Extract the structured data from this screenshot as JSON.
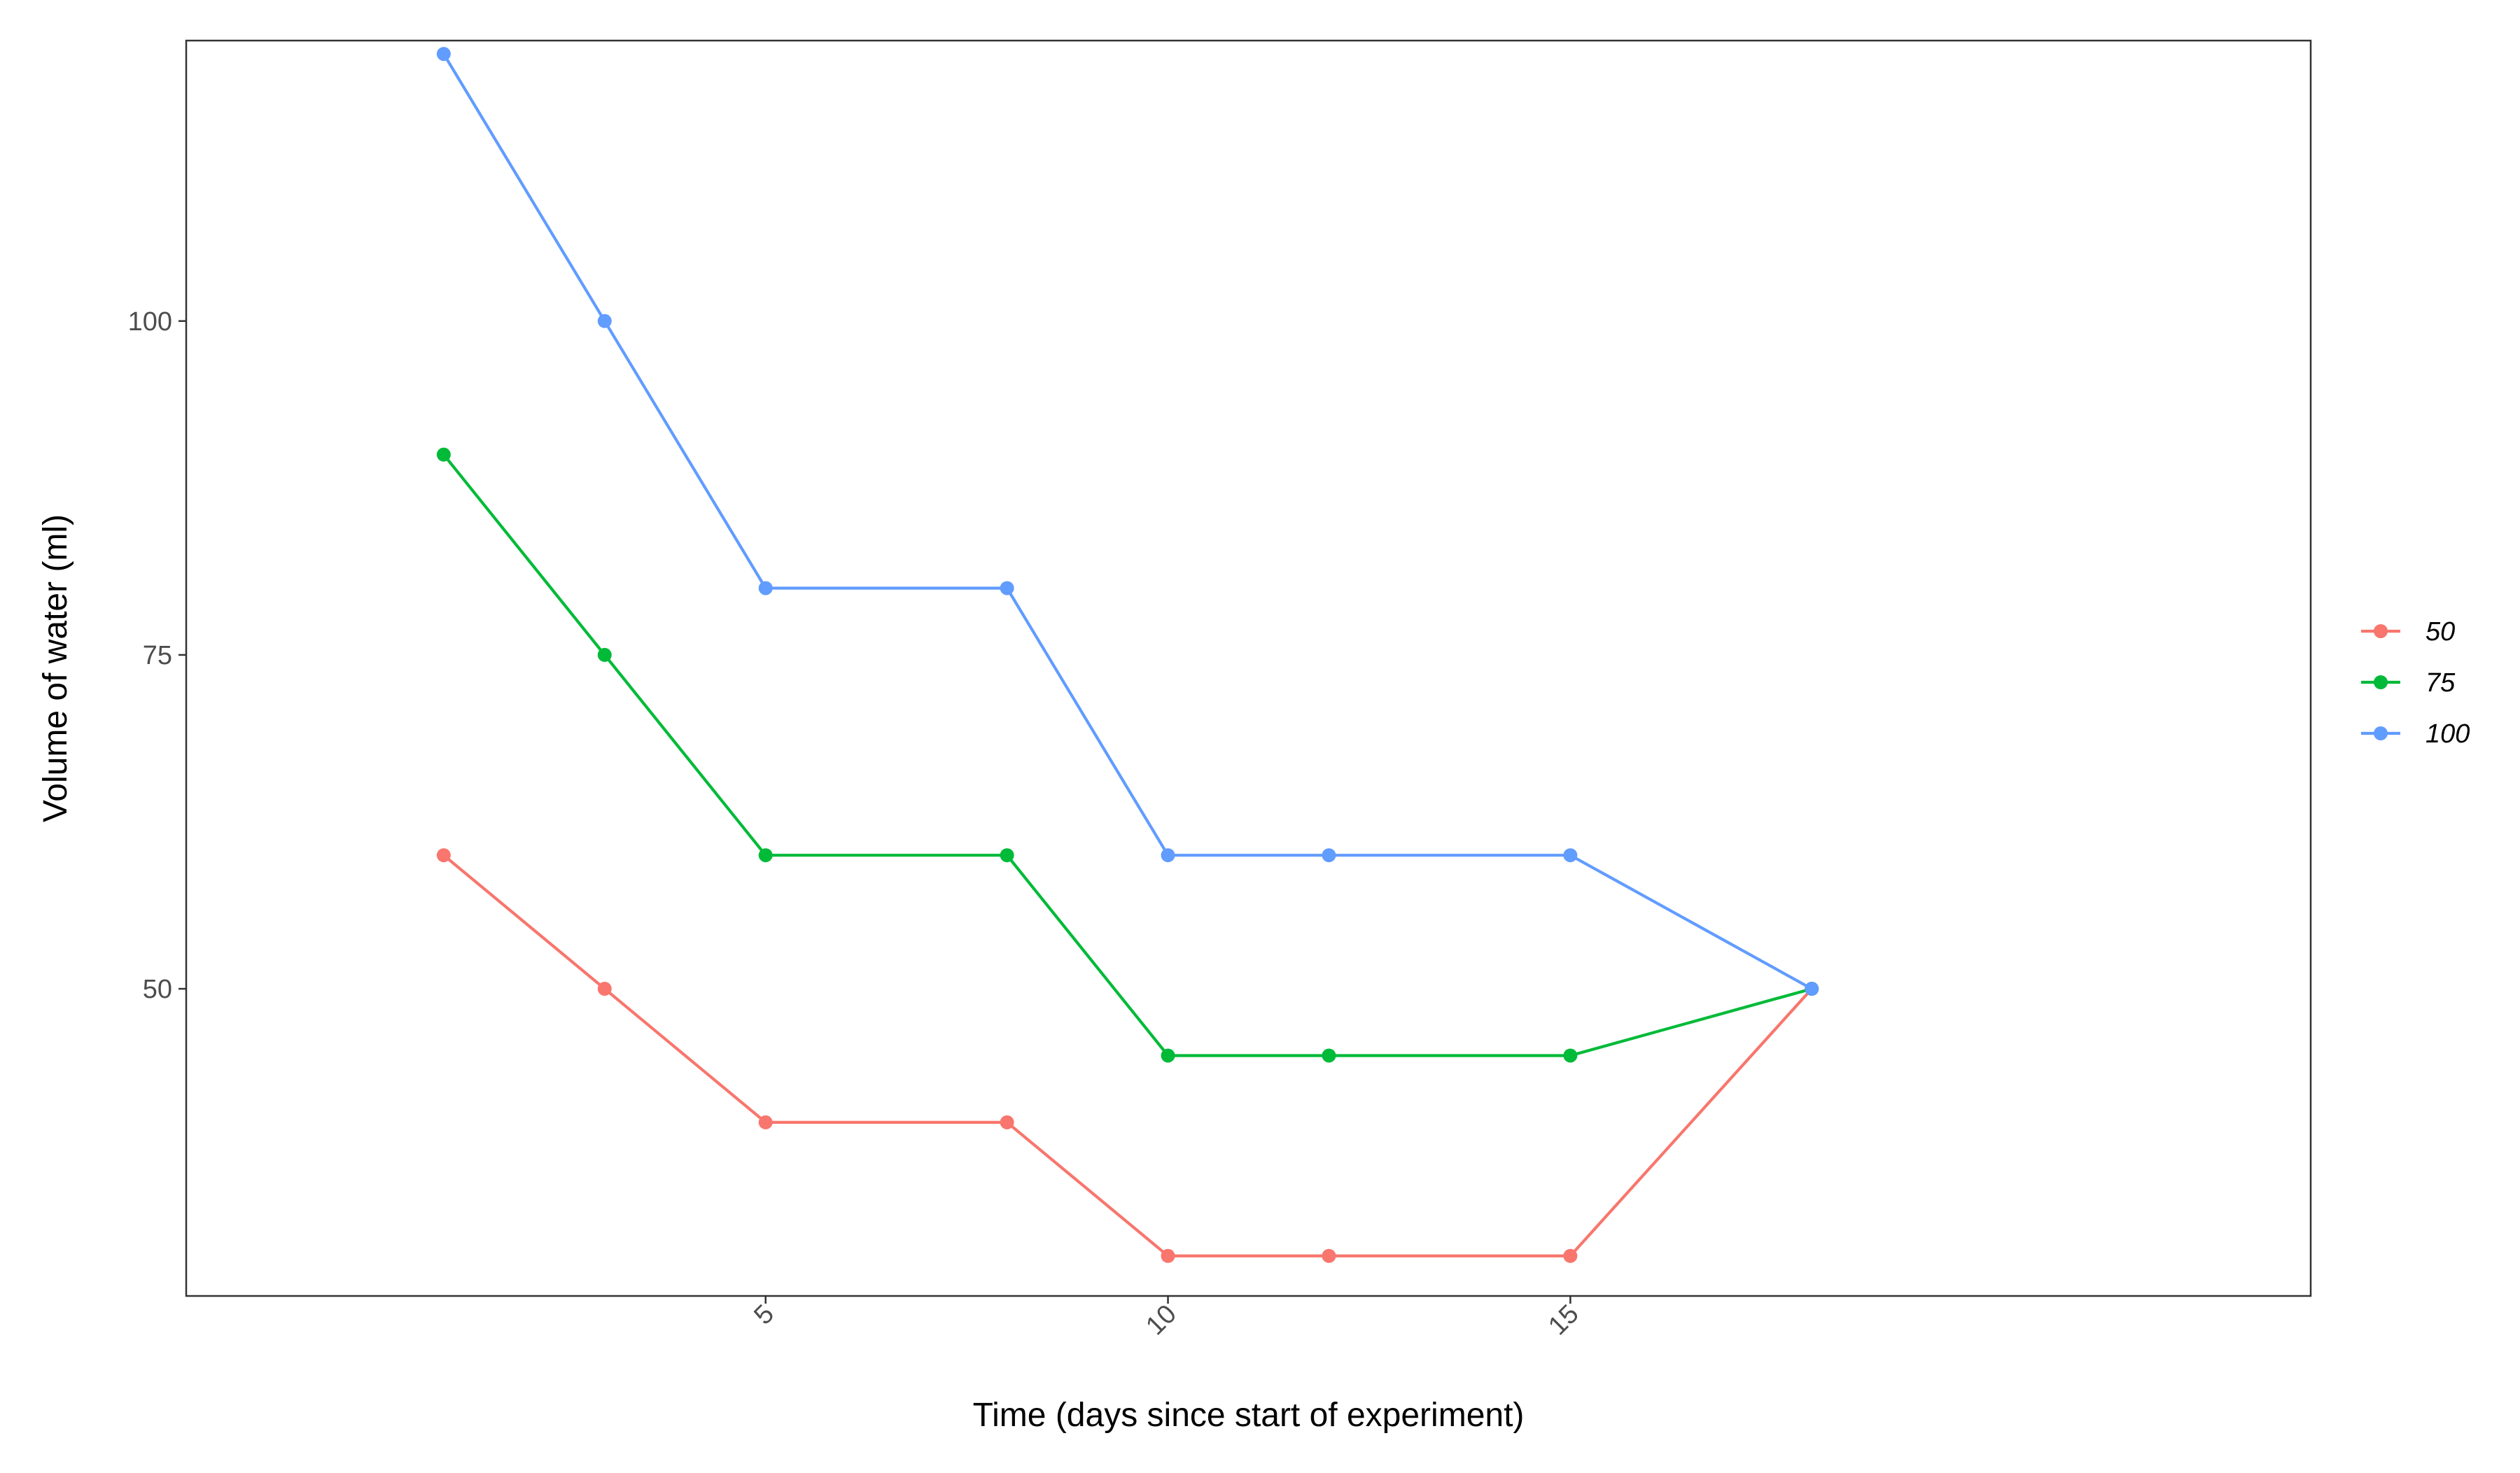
{
  "chart_data": {
    "type": "line",
    "title": "",
    "xlabel": "Time (days since start of experiment)",
    "ylabel": "Volume of water (ml)",
    "x": [
      1,
      3,
      5,
      8,
      10,
      12,
      15,
      18
    ],
    "xlim": [
      -2.2,
      24.2
    ],
    "ylim": [
      27,
      121
    ],
    "xticks": [
      5,
      10,
      15
    ],
    "yticks": [
      50,
      75,
      100
    ],
    "grid": false,
    "legend_position": "right",
    "series": [
      {
        "name": "50",
        "color": "#F8766D",
        "values": [
          60,
          50,
          40,
          40,
          30,
          30,
          30,
          50
        ]
      },
      {
        "name": "75",
        "color": "#00BA38",
        "values": [
          90,
          75,
          60,
          60,
          45,
          45,
          45,
          50
        ]
      },
      {
        "name": "100",
        "color": "#619CFF",
        "values": [
          120,
          100,
          80,
          80,
          60,
          60,
          60,
          50
        ]
      }
    ]
  }
}
